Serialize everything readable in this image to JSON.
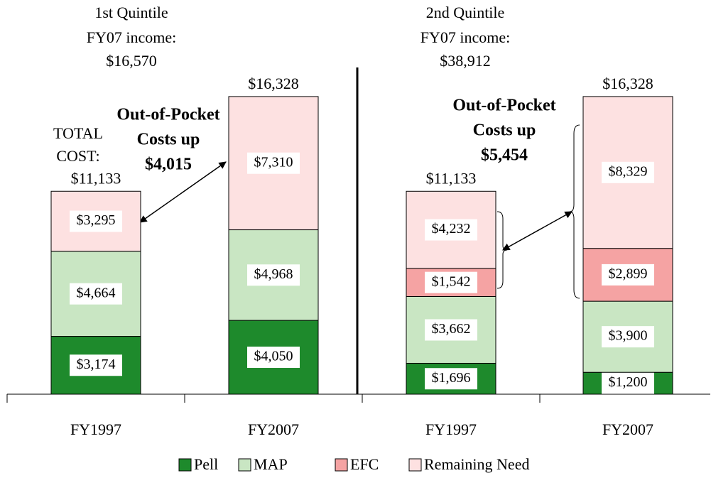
{
  "chart_data": [
    {
      "type": "stacked_bar",
      "title": "1st Quintile",
      "subtitle": [
        "FY07 income:",
        "$16,570"
      ],
      "categories": [
        "FY1997",
        "FY2007"
      ],
      "series": [
        {
          "name": "Pell",
          "color": "#1e8a2c",
          "values": [
            3174,
            4050
          ],
          "value_labels": [
            "$3,174",
            "$4,050"
          ]
        },
        {
          "name": "MAP",
          "color": "#c9e6c3",
          "values": [
            4664,
            4968
          ],
          "value_labels": [
            "$4,664",
            "$4,968"
          ]
        },
        {
          "name": "Remaining Need",
          "color": "#fde1e1",
          "values": [
            3295,
            7310
          ],
          "value_labels": [
            "$3,295",
            "$7,310"
          ]
        }
      ],
      "totals": [
        11133,
        16328
      ],
      "total_labels": [
        "$11,133",
        "$16,328"
      ],
      "total_caption": [
        "TOTAL",
        "COST:"
      ],
      "annotation": [
        "Out-of-Pocket",
        "Costs up",
        "$4,015"
      ],
      "ylim": [
        0,
        18000
      ]
    },
    {
      "type": "stacked_bar",
      "title": "2nd Quintile",
      "subtitle": [
        "FY07 income:",
        "$38,912"
      ],
      "categories": [
        "FY1997",
        "FY2007"
      ],
      "series": [
        {
          "name": "Pell",
          "color": "#1e8a2c",
          "values": [
            1696,
            1200
          ],
          "value_labels": [
            "$1,696",
            "$1,200"
          ]
        },
        {
          "name": "MAP",
          "color": "#c9e6c3",
          "values": [
            3662,
            3900
          ],
          "value_labels": [
            "$3,662",
            "$3,900"
          ]
        },
        {
          "name": "EFC",
          "color": "#f5a3a3",
          "values": [
            1542,
            2899
          ],
          "value_labels": [
            "$1,542",
            "$2,899"
          ]
        },
        {
          "name": "Remaining Need",
          "color": "#fde1e1",
          "values": [
            4232,
            8329
          ],
          "value_labels": [
            "$4,232",
            "$8,329"
          ]
        }
      ],
      "totals": [
        11133,
        16328
      ],
      "total_labels": [
        "$11,133",
        "$16,328"
      ],
      "annotation": [
        "Out-of-Pocket",
        "Costs up",
        "$5,454"
      ],
      "ylim": [
        0,
        18000
      ]
    }
  ]
}
